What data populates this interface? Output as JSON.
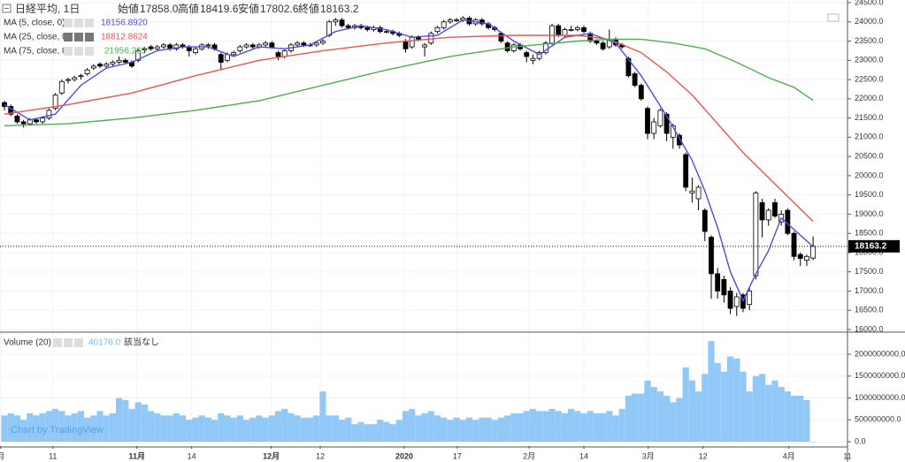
{
  "chart_data": {
    "type": "candlestick",
    "title": "日経平均, 1日",
    "ohlc_names": [
      "始値",
      "高値",
      "安値",
      "終値"
    ],
    "last_labels": [
      "17858.0",
      "18419.6",
      "17802.6",
      "18163.2"
    ],
    "up_color": "#ffffff",
    "down_color": "#000000",
    "grid": true,
    "xlim": [
      -0.7,
      132.4
    ],
    "xticks": [
      {
        "value": -0.6,
        "label": "月"
      },
      {
        "value": 7.6,
        "label": "11"
      },
      {
        "value": 20.8,
        "label": "11月"
      },
      {
        "value": 29.4,
        "label": "14"
      },
      {
        "value": 41.9,
        "label": "12月"
      },
      {
        "value": 49.6,
        "label": "12"
      },
      {
        "value": 62.8,
        "label": "2020"
      },
      {
        "value": 71.1,
        "label": "17"
      },
      {
        "value": 82.4,
        "label": "2月"
      },
      {
        "value": 91,
        "label": "14"
      },
      {
        "value": 101.1,
        "label": "3月"
      },
      {
        "value": 109.7,
        "label": "12"
      },
      {
        "value": 123.2,
        "label": "4月"
      },
      {
        "value": 132.4,
        "label": "11"
      }
    ],
    "ylim": [
      15954,
      24569
    ],
    "yticks": [
      {
        "value": 16000,
        "label": "16000.0"
      },
      {
        "value": 16500,
        "label": "16500.0"
      },
      {
        "value": 17000,
        "label": "17000.0"
      },
      {
        "value": 17500,
        "label": "17500.0"
      },
      {
        "value": 18000,
        "label": "18000.0"
      },
      {
        "value": 18500,
        "label": "18500.0"
      },
      {
        "value": 19000,
        "label": "19000.0"
      },
      {
        "value": 19500,
        "label": "19500.0"
      },
      {
        "value": 20000,
        "label": "20000.0"
      },
      {
        "value": 20500,
        "label": "20500.0"
      },
      {
        "value": 21000,
        "label": "21000.0"
      },
      {
        "value": 21500,
        "label": "21500.0"
      },
      {
        "value": 22000,
        "label": "22000.0"
      },
      {
        "value": 22500,
        "label": "22500.0"
      },
      {
        "value": 23000,
        "label": "23000.0"
      },
      {
        "value": 23500,
        "label": "23500.0"
      },
      {
        "value": 24000,
        "label": "24000.0"
      },
      {
        "value": 24500,
        "label": "24500.0"
      }
    ],
    "candles": [
      [
        21900,
        21950,
        21700,
        21800
      ],
      [
        21800,
        21850,
        21550,
        21600
      ],
      [
        21550,
        21600,
        21350,
        21400
      ],
      [
        21400,
        21450,
        21250,
        21350
      ],
      [
        21350,
        21500,
        21300,
        21450
      ],
      [
        21450,
        21500,
        21350,
        21400
      ],
      [
        21400,
        21550,
        21350,
        21500
      ],
      [
        21500,
        21750,
        21450,
        21700
      ],
      [
        21750,
        22150,
        21700,
        22100
      ],
      [
        22150,
        22500,
        22100,
        22450
      ],
      [
        22500,
        22550,
        22400,
        22500
      ],
      [
        22500,
        22600,
        22450,
        22550
      ],
      [
        22600,
        22650,
        22500,
        22600
      ],
      [
        22650,
        22800,
        22600,
        22750
      ],
      [
        22800,
        22900,
        22750,
        22850
      ],
      [
        22900,
        22950,
        22800,
        22850
      ],
      [
        22850,
        22950,
        22800,
        22900
      ],
      [
        22900,
        23000,
        22850,
        22950
      ],
      [
        22950,
        23100,
        22900,
        23000
      ],
      [
        23000,
        23050,
        22900,
        22950
      ],
      [
        22950,
        23000,
        22800,
        22850
      ],
      [
        23000,
        23300,
        22950,
        23250
      ],
      [
        23300,
        23350,
        23200,
        23300
      ],
      [
        23350,
        23400,
        23250,
        23300
      ],
      [
        23300,
        23400,
        23250,
        23350
      ],
      [
        23350,
        23450,
        23300,
        23400
      ],
      [
        23400,
        23450,
        23250,
        23300
      ],
      [
        23300,
        23450,
        23250,
        23400
      ],
      [
        23400,
        23450,
        23300,
        23350
      ],
      [
        23350,
        23400,
        23100,
        23250
      ],
      [
        23200,
        23350,
        23150,
        23300
      ],
      [
        23300,
        23450,
        23250,
        23400
      ],
      [
        23400,
        23450,
        23300,
        23400
      ],
      [
        23400,
        23450,
        23250,
        23300
      ],
      [
        23150,
        23200,
        22750,
        22950
      ],
      [
        23000,
        23200,
        22950,
        23150
      ],
      [
        23150,
        23250,
        23100,
        23200
      ],
      [
        23250,
        23400,
        23200,
        23350
      ],
      [
        23350,
        23450,
        23300,
        23400
      ],
      [
        23400,
        23450,
        23300,
        23350
      ],
      [
        23350,
        23450,
        23300,
        23400
      ],
      [
        23400,
        23500,
        23350,
        23450
      ],
      [
        23450,
        23500,
        23300,
        23350
      ],
      [
        23200,
        23250,
        23000,
        23100
      ],
      [
        23100,
        23300,
        23050,
        23250
      ],
      [
        23250,
        23450,
        23200,
        23400
      ],
      [
        23400,
        23500,
        23350,
        23450
      ],
      [
        23450,
        23500,
        23350,
        23400
      ],
      [
        23400,
        23450,
        23350,
        23400
      ],
      [
        23400,
        23500,
        23350,
        23450
      ],
      [
        23450,
        23550,
        23400,
        23500
      ],
      [
        23650,
        24050,
        23600,
        24000
      ],
      [
        24000,
        24100,
        23900,
        24050
      ],
      [
        24050,
        24100,
        23850,
        23900
      ],
      [
        23900,
        23950,
        23800,
        23850
      ],
      [
        23850,
        23950,
        23800,
        23900
      ],
      [
        23900,
        23950,
        23800,
        23850
      ],
      [
        23850,
        23900,
        23750,
        23800
      ],
      [
        23800,
        23900,
        23750,
        23850
      ],
      [
        23850,
        23900,
        23700,
        23750
      ],
      [
        23750,
        23800,
        23700,
        23750
      ],
      [
        23750,
        23800,
        23650,
        23700
      ],
      [
        23700,
        23750,
        23600,
        23650
      ],
      [
        23500,
        23550,
        23200,
        23300
      ],
      [
        23350,
        23650,
        23300,
        23600
      ],
      [
        23600,
        23650,
        23500,
        23550
      ],
      [
        23350,
        23450,
        23100,
        23400
      ],
      [
        23450,
        23750,
        23400,
        23700
      ],
      [
        23750,
        23900,
        23700,
        23850
      ],
      [
        23850,
        24050,
        23800,
        24000
      ],
      [
        24000,
        24100,
        23950,
        24050
      ],
      [
        24050,
        24100,
        24000,
        24050
      ],
      [
        24050,
        24150,
        24000,
        24100
      ],
      [
        24100,
        24150,
        23900,
        23950
      ],
      [
        23950,
        24100,
        23900,
        24050
      ],
      [
        24050,
        24100,
        23900,
        23950
      ],
      [
        23950,
        24000,
        23800,
        23850
      ],
      [
        23850,
        23900,
        23750,
        23800
      ],
      [
        23700,
        23750,
        23450,
        23500
      ],
      [
        23450,
        23500,
        23200,
        23250
      ],
      [
        23250,
        23450,
        23200,
        23400
      ],
      [
        23400,
        23450,
        23250,
        23300
      ],
      [
        23200,
        23250,
        22950,
        23100
      ],
      [
        23000,
        23150,
        22900,
        23050
      ],
      [
        23050,
        23250,
        23000,
        23200
      ],
      [
        23200,
        23500,
        23150,
        23450
      ],
      [
        23450,
        23950,
        23400,
        23900
      ],
      [
        23900,
        23950,
        23600,
        23650
      ],
      [
        23650,
        23850,
        23600,
        23800
      ],
      [
        23800,
        23900,
        23750,
        23800
      ],
      [
        23800,
        23900,
        23750,
        23850
      ],
      [
        23850,
        23900,
        23700,
        23750
      ],
      [
        23700,
        23750,
        23450,
        23500
      ],
      [
        23500,
        23550,
        23400,
        23450
      ],
      [
        23450,
        23500,
        23250,
        23300
      ],
      [
        23350,
        23800,
        23300,
        23550
      ],
      [
        23550,
        23600,
        23350,
        23400
      ],
      [
        23400,
        23450,
        23300,
        23350
      ],
      [
        23050,
        23100,
        22550,
        22600
      ],
      [
        22650,
        22700,
        22300,
        22350
      ],
      [
        22350,
        22400,
        21950,
        22000
      ],
      [
        21750,
        21800,
        20950,
        21100
      ],
      [
        21100,
        21500,
        20950,
        21400
      ],
      [
        21300,
        21750,
        21250,
        21700
      ],
      [
        21600,
        21650,
        20900,
        21100
      ],
      [
        21000,
        21350,
        20700,
        21300
      ],
      [
        21050,
        21100,
        20700,
        20800
      ],
      [
        20550,
        20600,
        19600,
        19700
      ],
      [
        19550,
        19950,
        19300,
        19600
      ],
      [
        19400,
        19750,
        19100,
        19700
      ],
      [
        19100,
        19150,
        18300,
        18550
      ],
      [
        18400,
        18450,
        16800,
        17450
      ],
      [
        17450,
        17600,
        16800,
        17000
      ],
      [
        17300,
        17400,
        16700,
        16900
      ],
      [
        17000,
        17100,
        16400,
        16550
      ],
      [
        16600,
        16950,
        16350,
        16850
      ],
      [
        16900,
        16950,
        16450,
        16550
      ],
      [
        16650,
        17100,
        16500,
        17000
      ],
      [
        17400,
        19600,
        17300,
        19550
      ],
      [
        19300,
        19400,
        18400,
        18850
      ],
      [
        18850,
        19150,
        18700,
        19100
      ],
      [
        19300,
        19400,
        18900,
        18950
      ],
      [
        18800,
        19100,
        18700,
        19000
      ],
      [
        19100,
        19150,
        18450,
        18500
      ],
      [
        18500,
        18550,
        17800,
        17900
      ],
      [
        17950,
        18000,
        17650,
        17850
      ],
      [
        17800,
        17950,
        17650,
        17900
      ],
      [
        17858,
        18419.6,
        17802.6,
        18163.2
      ]
    ],
    "ma": [
      {
        "name": "MA (5, close, 0)",
        "color": "#4c4ce8",
        "value_label": "18156.8920",
        "x": [
          0,
          4,
          8,
          12,
          16,
          20,
          24,
          28,
          32,
          36,
          40,
          44,
          48,
          52,
          56,
          60,
          64,
          68,
          72,
          76,
          80,
          84,
          88,
          92,
          96,
          100,
          104,
          108,
          110,
          112,
          114,
          116,
          118,
          120,
          122,
          124,
          127
        ],
        "values": [
          21850,
          21450,
          21600,
          22350,
          22800,
          22950,
          23250,
          23350,
          23350,
          23100,
          23350,
          23300,
          23400,
          23750,
          23900,
          23800,
          23600,
          23650,
          24050,
          23950,
          23500,
          23150,
          23600,
          23700,
          23450,
          22600,
          21550,
          20400,
          19600,
          18650,
          17500,
          16750,
          17450,
          18050,
          18900,
          18600,
          18156.892
        ]
      },
      {
        "name": "MA (25, close, 0)",
        "color": "#f0524f",
        "value_label": "18812.8624",
        "x": [
          0,
          10,
          20,
          30,
          40,
          50,
          60,
          70,
          80,
          90,
          95,
          100,
          104,
          108,
          112,
          116,
          120,
          124,
          127
        ],
        "values": [
          21600,
          21850,
          22150,
          22600,
          23000,
          23250,
          23450,
          23600,
          23650,
          23650,
          23550,
          23200,
          22700,
          22100,
          21350,
          20600,
          19950,
          19300,
          18812.8624
        ]
      },
      {
        "name": "MA (75, close, 0)",
        "color": "#4caf50",
        "value_label": "21956.263",
        "x": [
          0,
          10,
          20,
          30,
          40,
          50,
          60,
          70,
          80,
          90,
          95,
          100,
          105,
          110,
          115,
          120,
          124,
          127
        ],
        "values": [
          21300,
          21350,
          21500,
          21700,
          21950,
          22350,
          22750,
          23100,
          23350,
          23500,
          23550,
          23550,
          23450,
          23300,
          22950,
          22550,
          22300,
          21956.263
        ]
      }
    ],
    "volume": {
      "name": "Volume (20)",
      "value_label": "40176.0",
      "status": "該当なし",
      "color": "#90c8f7",
      "ylim": [
        -101000000,
        2485000000
      ],
      "yticks": [
        {
          "value": 0,
          "label": "0.0"
        },
        {
          "value": 500000000,
          "label": "500000000.0"
        },
        {
          "value": 1000000000,
          "label": "1000000000.0"
        },
        {
          "value": 1500000000,
          "label": "1500000000.0"
        },
        {
          "value": 2000000000,
          "label": "2000000000.0"
        }
      ],
      "values": [
        600000000.0,
        650000000.0,
        600000000.0,
        500000000.0,
        650000000.0,
        600000000.0,
        650000000.0,
        700000000.0,
        750000000.0,
        700000000.0,
        600000000.0,
        650000000.0,
        700000000.0,
        550000000.0,
        600000000.0,
        700000000.0,
        600000000.0,
        650000000.0,
        1000000000.0,
        950000000.0,
        750000000.0,
        900000000.0,
        850000000.0,
        700000000.0,
        650000000.0,
        600000000.0,
        600000000.0,
        650000000.0,
        600000000.0,
        500000000.0,
        550000000.0,
        600000000.0,
        550000000.0,
        500000000.0,
        650000000.0,
        600000000.0,
        550000000.0,
        600000000.0,
        500000000.0,
        550000000.0,
        600000000.0,
        550000000.0,
        600000000.0,
        700000000.0,
        750000000.0,
        650000000.0,
        600000000.0,
        550000000.0,
        550000000.0,
        600000000.0,
        1150000000.0,
        600000000.0,
        600000000.0,
        500000000.0,
        550000000.0,
        400000000.0,
        450000000.0,
        400000000.0,
        400000000.0,
        500000000.0,
        450000000.0,
        400000000.0,
        500000000.0,
        700000000.0,
        750000000.0,
        600000000.0,
        650000000.0,
        700000000.0,
        600000000.0,
        550000000.0,
        500000000.0,
        550000000.0,
        500000000.0,
        550000000.0,
        500000000.0,
        550000000.0,
        550000000.0,
        500000000.0,
        550000000.0,
        600000000.0,
        650000000.0,
        650000000.0,
        700000000.0,
        750000000.0,
        700000000.0,
        700000000.0,
        750000000.0,
        700000000.0,
        650000000.0,
        750000000.0,
        700000000.0,
        650000000.0,
        700000000.0,
        650000000.0,
        650000000.0,
        700000000.0,
        600000000.0,
        750000000.0,
        1050000000.0,
        1100000000.0,
        1100000000.0,
        1400000000.0,
        1250000000.0,
        1150000000.0,
        1050000000.0,
        900000000.0,
        1000000000.0,
        1700000000.0,
        1400000000.0,
        1150000000.0,
        1550000000.0,
        2300000000.0,
        1800000000.0,
        1600000000.0,
        1950000000.0,
        1900000000.0,
        1600000000.0,
        1150000000.0,
        1500000000.0,
        1550000000.0,
        1300000000.0,
        1400000000.0,
        1250000000.0,
        1150000000.0,
        1050000000.0,
        1050000000.0,
        950000000.0,
        40176
      ]
    },
    "watermark": "Chart by TradingView"
  }
}
